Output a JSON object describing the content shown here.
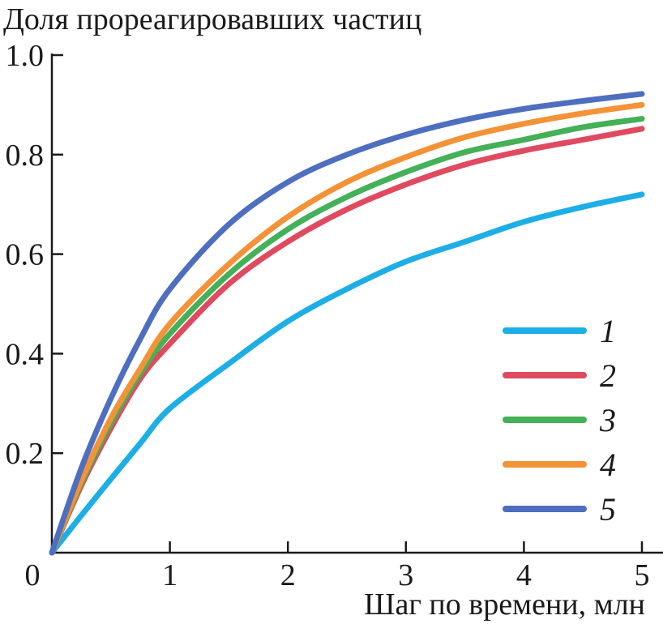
{
  "chart_data": {
    "type": "line",
    "title": "",
    "ylabel": "Доля прореагировавших частиц",
    "xlabel": "Шаг по времени, млн",
    "xlim": [
      0,
      5
    ],
    "ylim": [
      0,
      1.0
    ],
    "x_ticks": [
      "0",
      "1",
      "2",
      "3",
      "4",
      "5"
    ],
    "y_ticks": [
      "0.2",
      "0.4",
      "0.6",
      "0.8",
      "1.0"
    ],
    "x_tick_values": [
      0,
      1,
      2,
      3,
      4,
      5
    ],
    "y_tick_values": [
      0.2,
      0.4,
      0.6,
      0.8,
      1.0
    ],
    "grid": false,
    "legend_position": "right",
    "x": [
      0,
      0.25,
      0.5,
      0.75,
      1,
      1.5,
      2,
      2.5,
      3,
      3.5,
      4,
      4.5,
      5
    ],
    "series": [
      {
        "name": "1",
        "color": "#1eaee6",
        "values": [
          0,
          0.075,
          0.148,
          0.22,
          0.29,
          0.38,
          0.465,
          0.53,
          0.585,
          0.625,
          0.665,
          0.695,
          0.72
        ]
      },
      {
        "name": "2",
        "color": "#e04a5f",
        "values": [
          0,
          0.135,
          0.25,
          0.35,
          0.42,
          0.54,
          0.625,
          0.69,
          0.74,
          0.78,
          0.808,
          0.83,
          0.852
        ]
      },
      {
        "name": "3",
        "color": "#44b057",
        "values": [
          0,
          0.14,
          0.26,
          0.36,
          0.44,
          0.56,
          0.65,
          0.715,
          0.765,
          0.805,
          0.83,
          0.855,
          0.872
        ]
      },
      {
        "name": "4",
        "color": "#f39236",
        "values": [
          0,
          0.145,
          0.27,
          0.37,
          0.46,
          0.58,
          0.675,
          0.745,
          0.795,
          0.835,
          0.862,
          0.883,
          0.9
        ]
      },
      {
        "name": "5",
        "color": "#4e6fbf",
        "values": [
          0,
          0.17,
          0.31,
          0.43,
          0.53,
          0.66,
          0.745,
          0.8,
          0.84,
          0.87,
          0.892,
          0.908,
          0.922
        ]
      }
    ]
  }
}
